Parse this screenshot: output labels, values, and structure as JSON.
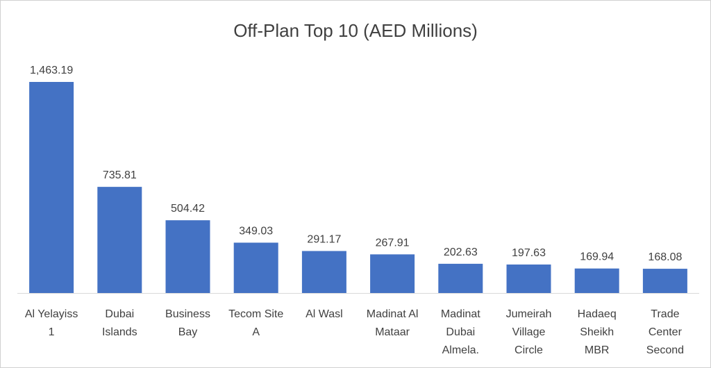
{
  "chart_data": {
    "type": "bar",
    "title": "Off-Plan Top 10 (AED Millions)",
    "xlabel": "",
    "ylabel": "",
    "categories": [
      [
        "Al Yelayiss",
        "1"
      ],
      [
        "Dubai",
        "Islands"
      ],
      [
        "Business",
        "Bay"
      ],
      [
        "Tecom Site",
        "A"
      ],
      [
        "Al Wasl"
      ],
      [
        "Madinat Al",
        "Mataar"
      ],
      [
        "Madinat",
        "Dubai",
        "Almela."
      ],
      [
        "Jumeirah",
        "Village",
        "Circle"
      ],
      [
        "Hadaeq",
        "Sheikh",
        "MBR"
      ],
      [
        "Trade",
        "Center",
        "Second"
      ]
    ],
    "values": [
      1463.19,
      735.81,
      504.42,
      349.03,
      291.17,
      267.91,
      202.63,
      197.63,
      169.94,
      168.08
    ],
    "data_labels": [
      "1,463.19",
      "735.81",
      "504.42",
      "349.03",
      "291.17",
      "267.91",
      "202.63",
      "197.63",
      "169.94",
      "168.08"
    ],
    "ylim": [
      0,
      1463.19
    ],
    "grid": false,
    "legend": "none",
    "bar_color": "#4472C4"
  }
}
